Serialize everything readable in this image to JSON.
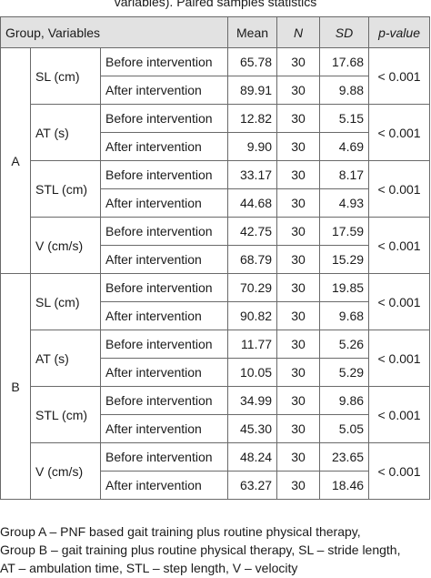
{
  "caption": "variables). Paired samples statistics",
  "header": {
    "group_variables": "Group, Variables",
    "mean": "Mean",
    "n": "N",
    "sd": "SD",
    "p_value": "p-value"
  },
  "groups": [
    {
      "name": "A",
      "variables": [
        {
          "name": "SL (cm)",
          "p": "< 0.001",
          "rows": [
            {
              "label": "Before intervention",
              "mean": "65.78",
              "n": "30",
              "sd": "17.68"
            },
            {
              "label": "After intervention",
              "mean": "89.91",
              "n": "30",
              "sd": "9.88"
            }
          ]
        },
        {
          "name": "AT (s)",
          "p": "< 0.001",
          "rows": [
            {
              "label": "Before intervention",
              "mean": "12.82",
              "n": "30",
              "sd": "5.15"
            },
            {
              "label": "After intervention",
              "mean": "9.90",
              "n": "30",
              "sd": "4.69"
            }
          ]
        },
        {
          "name": "STL (cm)",
          "p": "< 0.001",
          "rows": [
            {
              "label": "Before intervention",
              "mean": "33.17",
              "n": "30",
              "sd": "8.17"
            },
            {
              "label": "After intervention",
              "mean": "44.68",
              "n": "30",
              "sd": "4.93"
            }
          ]
        },
        {
          "name": "V (cm/s)",
          "p": "< 0.001",
          "rows": [
            {
              "label": "Before intervention",
              "mean": "42.75",
              "n": "30",
              "sd": "17.59"
            },
            {
              "label": "After intervention",
              "mean": "68.79",
              "n": "30",
              "sd": "15.29"
            }
          ]
        }
      ]
    },
    {
      "name": "B",
      "variables": [
        {
          "name": "SL (cm)",
          "p": "< 0.001",
          "rows": [
            {
              "label": "Before intervention",
              "mean": "70.29",
              "n": "30",
              "sd": "19.85"
            },
            {
              "label": "After intervention",
              "mean": "90.82",
              "n": "30",
              "sd": "9.68"
            }
          ]
        },
        {
          "name": "AT (s)",
          "p": "< 0.001",
          "rows": [
            {
              "label": "Before intervention",
              "mean": "11.77",
              "n": "30",
              "sd": "5.26"
            },
            {
              "label": "After intervention",
              "mean": "10.05",
              "n": "30",
              "sd": "5.29"
            }
          ]
        },
        {
          "name": "STL (cm)",
          "p": "< 0.001",
          "rows": [
            {
              "label": "Before intervention",
              "mean": "34.99",
              "n": "30",
              "sd": "9.86"
            },
            {
              "label": "After intervention",
              "mean": "45.30",
              "n": "30",
              "sd": "5.05"
            }
          ]
        },
        {
          "name": "V (cm/s)",
          "p": "< 0.001",
          "rows": [
            {
              "label": "Before intervention",
              "mean": "48.24",
              "n": "30",
              "sd": "23.65"
            },
            {
              "label": "After intervention",
              "mean": "63.27",
              "n": "30",
              "sd": "18.46"
            }
          ]
        }
      ]
    }
  ],
  "footnote": [
    "Group A – PNF based gait training plus routine physical therapy,",
    "Group B – gait training plus routine physical therapy, SL – stride length,",
    "AT – ambulation time, STL – step length, V – velocity"
  ]
}
